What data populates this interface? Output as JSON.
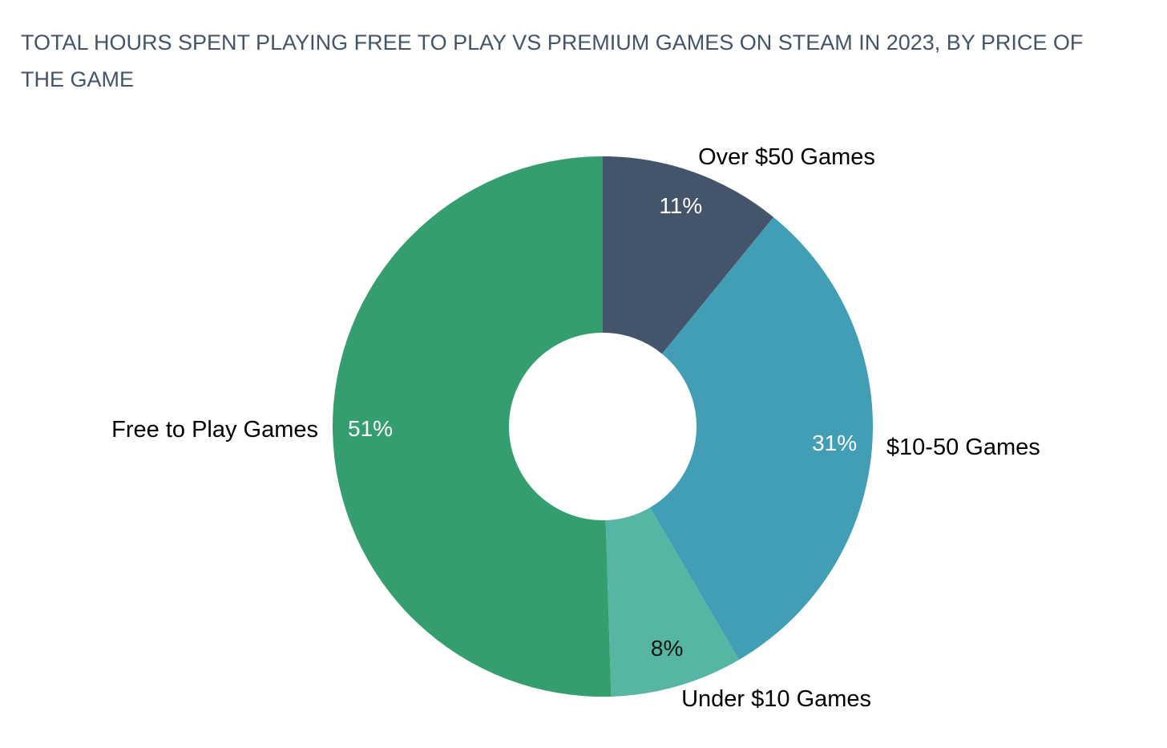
{
  "chart_data": {
    "type": "donut",
    "title": "TOTAL HOURS SPENT PLAYING FREE TO PLAY VS PREMIUM GAMES ON STEAM IN 2023, BY PRICE OF THE GAME",
    "categories": [
      "Over $50 Games",
      "$10-50 Games",
      "Under $10 Games",
      "Free to Play Games"
    ],
    "values": [
      11,
      31,
      8,
      51
    ],
    "value_labels": [
      "11%",
      "31%",
      "8%",
      "51%"
    ],
    "colors": [
      "#44546a",
      "#419eb5",
      "#57b5a3",
      "#359e6e"
    ],
    "value_label_colors": [
      "#ffffff",
      "#ffffff",
      "#111111",
      "#ffffff"
    ]
  }
}
